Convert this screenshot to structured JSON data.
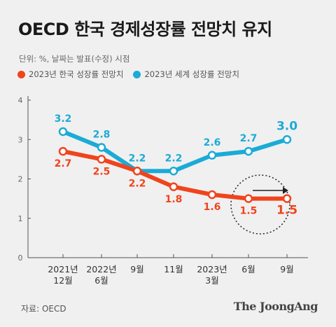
{
  "title": "OECD 한국 경제성장률 전망치 유지",
  "unit_note": "단위: %, 날짜는 발표(수정) 시점",
  "source": "자료: OECD",
  "logo": "The JoongAng",
  "colors": {
    "korea": "#f0441c",
    "world": "#1aabd6",
    "axis": "#555555",
    "grid": "#cfcfcf"
  },
  "chart_data": {
    "type": "line",
    "title": "OECD 한국 경제성장률 전망치 유지",
    "xlabel": "",
    "ylabel": "",
    "ylim": [
      0,
      4
    ],
    "yticks": [
      "0",
      "1",
      "2",
      "3",
      "4"
    ],
    "categories": [
      "2021년\n12월",
      "2022년\n6월",
      "9월",
      "11월",
      "2023년\n3월",
      "6월",
      "9월"
    ],
    "series": [
      {
        "name": "2023년 세계 성장률 전망치",
        "values": [
          3.2,
          2.8,
          2.2,
          2.2,
          2.6,
          2.7,
          3.0
        ],
        "labels": [
          "3.2",
          "2.8",
          "2.2",
          "2.2",
          "2.6",
          "2.7",
          "3.0"
        ]
      },
      {
        "name": "2023년 한국 성장률 전망치",
        "values": [
          2.7,
          2.5,
          2.2,
          1.8,
          1.6,
          1.5,
          1.5
        ],
        "labels": [
          "2.7",
          "2.5",
          "2.2",
          "1.8",
          "1.6",
          "1.5",
          "1.5"
        ]
      }
    ],
    "grid": false,
    "legend": "top-left"
  }
}
